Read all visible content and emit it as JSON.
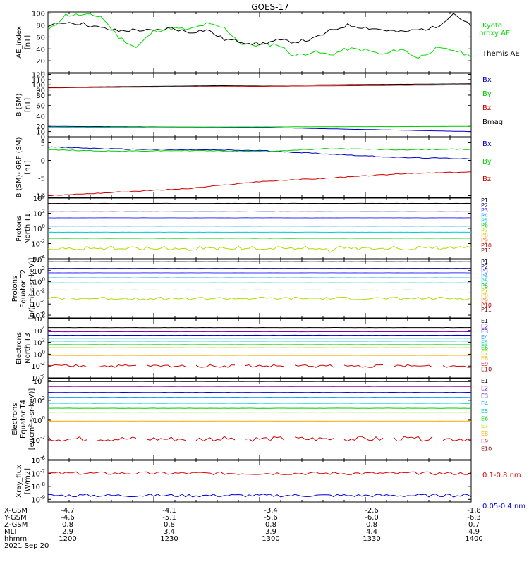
{
  "title": "GOES-17",
  "chart_data": [
    {
      "type": "line",
      "ylabel": "AE_index\n[nT]",
      "yticks": [
        "0",
        "20",
        "40",
        "60",
        "80",
        "100"
      ],
      "ylim": [
        0,
        102
      ],
      "scale": "linear",
      "x": [
        0,
        5,
        10,
        15,
        20,
        25,
        30,
        35,
        40,
        45,
        50,
        55,
        60,
        65,
        70,
        75,
        80,
        85,
        90,
        95,
        100,
        105,
        110,
        115,
        120
      ],
      "series": [
        {
          "name": "Kyoto proxy AE",
          "color": "#00dd00",
          "values": [
            70,
            97,
            97,
            95,
            60,
            42,
            70,
            75,
            72,
            82,
            75,
            48,
            46,
            48,
            28,
            35,
            30,
            40,
            38,
            30,
            40,
            25,
            40,
            38,
            28
          ]
        },
        {
          "name": "Themis AE",
          "color": "#000000",
          "values": [
            78,
            85,
            82,
            75,
            70,
            72,
            70,
            75,
            68,
            72,
            56,
            52,
            48,
            54,
            52,
            56,
            70,
            80,
            76,
            72,
            68,
            72,
            76,
            100,
            78
          ]
        }
      ]
    },
    {
      "type": "line",
      "ylabel": "B (SM)\n[nT]",
      "yticks": [
        "0",
        "10",
        "20",
        "40",
        "60",
        "80",
        "90",
        "100",
        "110",
        "120"
      ],
      "ylim": [
        0,
        122
      ],
      "scale": "linear",
      "x": [
        0,
        60,
        120
      ],
      "series": [
        {
          "name": "Bx",
          "color": "#0000cc",
          "values": [
            20,
            18,
            10
          ]
        },
        {
          "name": "By",
          "color": "#00cc00",
          "values": [
            18,
            19,
            20
          ]
        },
        {
          "name": "Bz",
          "color": "#cc0000",
          "values": [
            94,
            97,
            100
          ]
        },
        {
          "name": "Bmag",
          "color": "#000000",
          "values": [
            95,
            99,
            102
          ]
        }
      ]
    },
    {
      "type": "line",
      "ylabel": "B (SM)-IGRF (SM)\n[nT]",
      "yticks": [
        "-10",
        "-5",
        "0",
        "5"
      ],
      "ylim": [
        -10.5,
        6.5
      ],
      "scale": "linear",
      "x": [
        0,
        20,
        40,
        60,
        80,
        100,
        120
      ],
      "series": [
        {
          "name": "Bx",
          "color": "#0000cc",
          "values": [
            3.8,
            3.2,
            3.0,
            2.8,
            1.8,
            0.8,
            0.5
          ]
        },
        {
          "name": "By",
          "color": "#00cc00",
          "values": [
            3.0,
            2.6,
            2.8,
            2.5,
            3.3,
            3.0,
            3.2
          ]
        },
        {
          "name": "Bz",
          "color": "#cc0000",
          "values": [
            -10,
            -9,
            -8,
            -6,
            -5,
            -3.8,
            -3.3
          ]
        }
      ]
    },
    {
      "type": "line",
      "ylabel": "Protons\nNorth T1",
      "yticks": [
        "10^-4",
        "10^-2",
        "10^0",
        "10^2",
        "10^4"
      ],
      "ylim": [
        -4,
        4
      ],
      "scale": "log",
      "series": [
        {
          "name": "P1",
          "color": "#000000",
          "values": [
            3.3
          ]
        },
        {
          "name": "P2",
          "color": "#000099",
          "values": [
            2.2
          ]
        },
        {
          "name": "P3",
          "color": "#3333ff",
          "values": [
            1.4
          ]
        },
        {
          "name": "P4",
          "color": "#0099ff",
          "values": [
            0.3
          ]
        },
        {
          "name": "P5",
          "color": "#00cccc",
          "values": [
            -0.5
          ]
        },
        {
          "name": "P6",
          "color": "#00cc00",
          "values": [
            -1.3
          ]
        },
        {
          "name": "P7",
          "color": "#aadd00",
          "values": [
            -2.6
          ]
        },
        {
          "name": "P8",
          "color": "#ffaa00",
          "values": []
        },
        {
          "name": "P9",
          "color": "#ff6600",
          "values": []
        },
        {
          "name": "P10",
          "color": "#cc0000",
          "values": []
        },
        {
          "name": "P11",
          "color": "#880000",
          "values": []
        }
      ]
    },
    {
      "type": "line",
      "ylabel": "Protons\nEquator T2\n[p/(cm²-s-sr-keV)]",
      "yticks": [
        "10^-6",
        "10^-4",
        "10^-2",
        "10^0",
        "10^2",
        "10^4"
      ],
      "ylim": [
        -6.5,
        4
      ],
      "scale": "log",
      "series": [
        {
          "name": "P1",
          "color": "#000000",
          "values": [
            3.6
          ]
        },
        {
          "name": "P2",
          "color": "#000099",
          "values": [
            2.4
          ]
        },
        {
          "name": "P3",
          "color": "#3333ff",
          "values": [
            1.6
          ]
        },
        {
          "name": "P4",
          "color": "#0099ff",
          "values": [
            0.7
          ]
        },
        {
          "name": "P5",
          "color": "#00cccc",
          "values": [
            -0.2
          ]
        },
        {
          "name": "P6",
          "color": "#00cc00",
          "values": [
            -1.5
          ]
        },
        {
          "name": "P7",
          "color": "#aadd00",
          "values": [
            -3.0
          ]
        },
        {
          "name": "P8",
          "color": "#ffaa00",
          "values": []
        },
        {
          "name": "P9",
          "color": "#ff6600",
          "values": []
        },
        {
          "name": "P10",
          "color": "#cc0000",
          "values": []
        },
        {
          "name": "P11",
          "color": "#880000",
          "values": []
        }
      ]
    },
    {
      "type": "line",
      "ylabel": "Electrons\nNorth T3",
      "yticks": [
        "10^-4",
        "10^-2",
        "10^0",
        "10^2",
        "10^4",
        "10^6"
      ],
      "ylim": [
        -4,
        6
      ],
      "scale": "log",
      "series": [
        {
          "name": "E1",
          "color": "#000000",
          "values": [
            4.5
          ]
        },
        {
          "name": "E2",
          "color": "#8800aa",
          "values": [
            3.8
          ]
        },
        {
          "name": "E3",
          "color": "#0000cc",
          "values": [
            3.2
          ]
        },
        {
          "name": "E4",
          "color": "#0099ff",
          "values": [
            2.7
          ]
        },
        {
          "name": "E5",
          "color": "#00cccc",
          "values": [
            2.2
          ]
        },
        {
          "name": "E6",
          "color": "#00cc00",
          "values": [
            1.6
          ]
        },
        {
          "name": "E7",
          "color": "#aadd00",
          "values": [
            1.1
          ]
        },
        {
          "name": "E8",
          "color": "#ffaa00",
          "values": [
            -0.2
          ]
        },
        {
          "name": "E9",
          "color": "#cc0000",
          "values": [
            -2.0
          ]
        },
        {
          "name": "E10",
          "color": "#880000",
          "values": []
        }
      ]
    },
    {
      "type": "line",
      "ylabel": "Electrons\nEquator T4\n[e/(cm²-s-sr-keV)]",
      "yticks": [
        "10^-4",
        "10^-2",
        "10^0",
        "10^2",
        "10^4"
      ],
      "ylim": [
        -4,
        4.2
      ],
      "scale": "log",
      "series": [
        {
          "name": "E1",
          "color": "#000000",
          "values": [
            3.9
          ]
        },
        {
          "name": "E2",
          "color": "#8800aa",
          "values": [
            3.4
          ]
        },
        {
          "name": "E3",
          "color": "#0000cc",
          "values": [
            2.8
          ]
        },
        {
          "name": "E4",
          "color": "#0099ff",
          "values": [
            2.3
          ]
        },
        {
          "name": "E5",
          "color": "#00cccc",
          "values": [
            1.7
          ]
        },
        {
          "name": "E6",
          "color": "#00cc00",
          "values": [
            1.2
          ]
        },
        {
          "name": "E7",
          "color": "#aadd00",
          "values": [
            0.8
          ]
        },
        {
          "name": "E8",
          "color": "#ffaa00",
          "values": [
            -0.1
          ]
        },
        {
          "name": "E9",
          "color": "#cc0000",
          "values": [
            -1.9
          ]
        },
        {
          "name": "E10",
          "color": "#880000",
          "values": []
        }
      ]
    },
    {
      "type": "line",
      "ylabel": "Xray_flux\n[W/m2]",
      "yticks": [
        "10^-9",
        "10^-8",
        "10^-7",
        "10^-6"
      ],
      "ylim": [
        -9.2,
        -6
      ],
      "scale": "log",
      "series": [
        {
          "name": "0.1-0.8 nm",
          "color": "#dd0000",
          "values": [
            -7.0
          ]
        },
        {
          "name": "0.05-0.4 nm",
          "color": "#0000dd",
          "values": [
            -8.7
          ]
        }
      ]
    }
  ],
  "footer": {
    "labels": [
      "X-GSM",
      "Y-GSM",
      "Z-GSM",
      "MLT",
      "hhmm"
    ],
    "date": "2021 Sep 20",
    "columns": [
      [
        "-4.7",
        "-4.6",
        "0.8",
        "2.9",
        "1200"
      ],
      [
        "-4.1",
        "-5.1",
        "0.8",
        "3.4",
        "1230"
      ],
      [
        "-3.4",
        "-5.6",
        "0.8",
        "3.9",
        "1300"
      ],
      [
        "-2.6",
        "-6.0",
        "0.8",
        "4.4",
        "1330"
      ],
      [
        "-1.8",
        "-6.3",
        "0.7",
        "4.9",
        "1400"
      ]
    ]
  }
}
